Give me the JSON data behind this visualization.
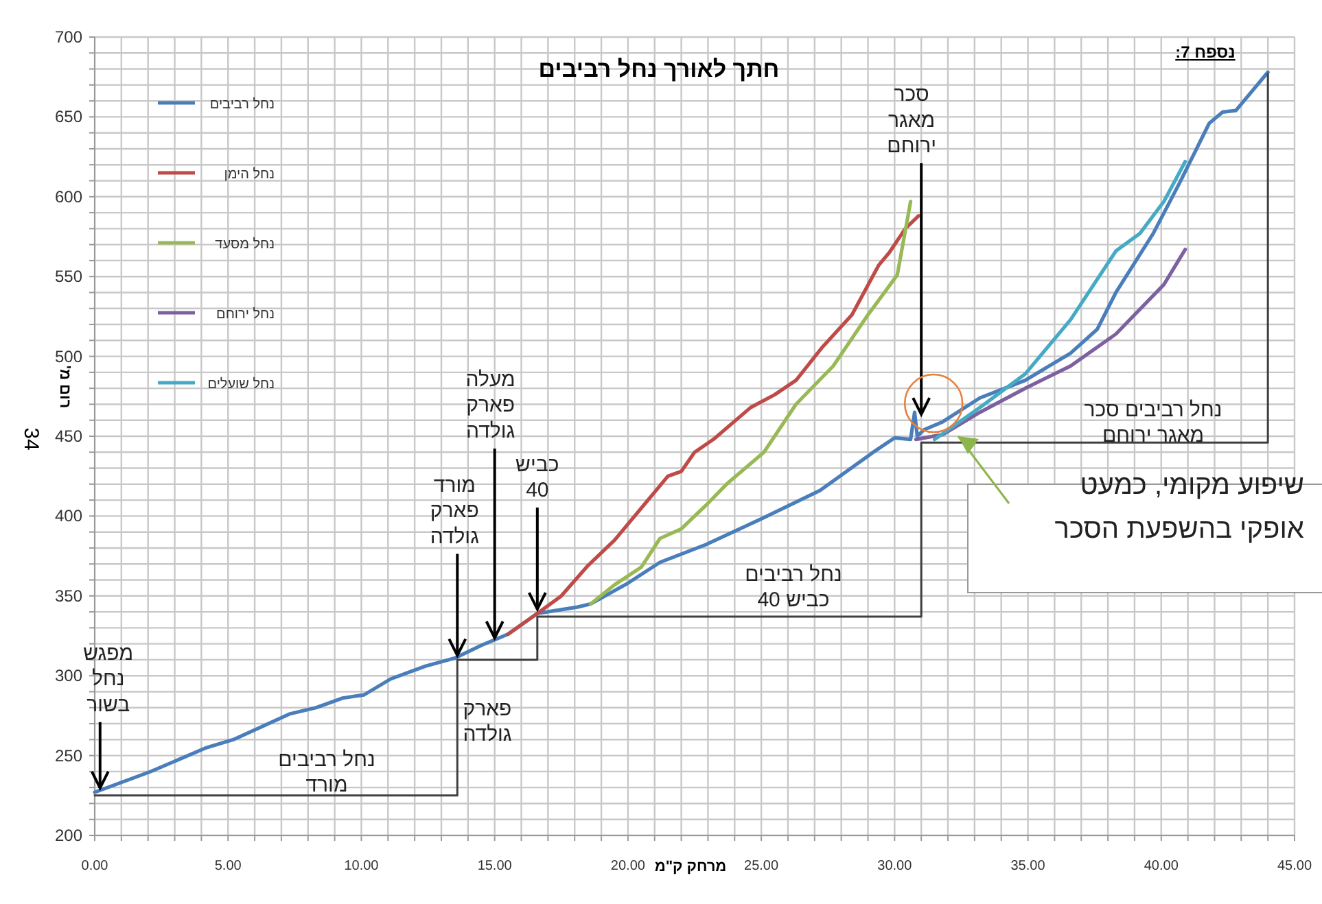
{
  "chart_data": {
    "type": "line",
    "title": "חתך לאורך נחל רביבים",
    "xlabel": "מרחק ק\"מ",
    "ylabel": "רום מ'",
    "xlim": [
      0,
      45
    ],
    "ylim": [
      200,
      700
    ],
    "xticks": [
      {
        "value": 0,
        "label": "0.00"
      },
      {
        "value": 1,
        "label": null
      },
      {
        "value": 2,
        "label": null
      },
      {
        "value": 3,
        "label": null
      },
      {
        "value": 4,
        "label": null
      },
      {
        "value": 5,
        "label": "5.00"
      },
      {
        "value": 6,
        "label": null
      },
      {
        "value": 7,
        "label": null
      },
      {
        "value": 8,
        "label": null
      },
      {
        "value": 9,
        "label": null
      },
      {
        "value": 10,
        "label": "10.00"
      },
      {
        "value": 11,
        "label": null
      },
      {
        "value": 12,
        "label": null
      },
      {
        "value": 13,
        "label": null
      },
      {
        "value": 14,
        "label": null
      },
      {
        "value": 15,
        "label": "15.00"
      },
      {
        "value": 16,
        "label": null
      },
      {
        "value": 17,
        "label": null
      },
      {
        "value": 18,
        "label": null
      },
      {
        "value": 19,
        "label": null
      },
      {
        "value": 20,
        "label": "20.00"
      },
      {
        "value": 21,
        "label": null
      },
      {
        "value": 22,
        "label": null
      },
      {
        "value": 23,
        "label": null
      },
      {
        "value": 24,
        "label": null
      },
      {
        "value": 25,
        "label": "25.00"
      },
      {
        "value": 26,
        "label": null
      },
      {
        "value": 27,
        "label": null
      },
      {
        "value": 28,
        "label": null
      },
      {
        "value": 29,
        "label": null
      },
      {
        "value": 30,
        "label": "30.00"
      },
      {
        "value": 31,
        "label": null
      },
      {
        "value": 32,
        "label": null
      },
      {
        "value": 33,
        "label": null
      },
      {
        "value": 34,
        "label": null
      },
      {
        "value": 35,
        "label": "35.00"
      },
      {
        "value": 36,
        "label": null
      },
      {
        "value": 37,
        "label": null
      },
      {
        "value": 38,
        "label": null
      },
      {
        "value": 39,
        "label": null
      },
      {
        "value": 40,
        "label": "40.00"
      },
      {
        "value": 41,
        "label": null
      },
      {
        "value": 42,
        "label": null
      },
      {
        "value": 43,
        "label": null
      },
      {
        "value": 44,
        "label": null
      },
      {
        "value": 45,
        "label": "45.00"
      }
    ],
    "yticks": [
      200,
      {
        "value": 210,
        "label": null
      },
      {
        "value": 220,
        "label": null
      },
      {
        "value": 230,
        "label": null
      },
      {
        "value": 240,
        "label": null
      },
      250,
      {
        "value": 260,
        "label": null
      },
      {
        "value": 270,
        "label": null
      },
      {
        "value": 280,
        "label": null
      },
      {
        "value": 290,
        "label": null
      },
      300,
      {
        "value": 310,
        "label": null
      },
      {
        "value": 320,
        "label": null
      },
      {
        "value": 330,
        "label": null
      },
      {
        "value": 340,
        "label": null
      },
      350,
      {
        "value": 360,
        "label": null
      },
      {
        "value": 370,
        "label": null
      },
      {
        "value": 380,
        "label": null
      },
      {
        "value": 390,
        "label": null
      },
      400,
      {
        "value": 410,
        "label": null
      },
      {
        "value": 420,
        "label": null
      },
      {
        "value": 430,
        "label": null
      },
      {
        "value": 440,
        "label": null
      },
      450,
      {
        "value": 460,
        "label": null
      },
      {
        "value": 470,
        "label": null
      },
      {
        "value": 480,
        "label": null
      },
      {
        "value": 490,
        "label": null
      },
      500,
      {
        "value": 510,
        "label": null
      },
      {
        "value": 520,
        "label": null
      },
      {
        "value": 530,
        "label": null
      },
      {
        "value": 540,
        "label": null
      },
      550,
      {
        "value": 560,
        "label": null
      },
      {
        "value": 570,
        "label": null
      },
      {
        "value": 580,
        "label": null
      },
      {
        "value": 590,
        "label": null
      },
      600,
      {
        "value": 610,
        "label": null
      },
      {
        "value": 620,
        "label": null
      },
      {
        "value": 630,
        "label": null
      },
      {
        "value": 640,
        "label": null
      },
      650,
      {
        "value": 660,
        "label": null
      },
      {
        "value": 670,
        "label": null
      },
      {
        "value": 680,
        "label": null
      },
      {
        "value": 690,
        "label": null
      },
      700
    ],
    "grid": true,
    "legend": "top left",
    "marker": "none",
    "line_style": "solid",
    "series": [
      {
        "name": "נחל רביבים",
        "color": "#4a7ebb",
        "x": [
          0,
          2.1,
          4.2,
          5.2,
          7.3,
          8.3,
          9.3,
          10.1,
          11.1,
          12.4,
          13.5,
          14.5,
          15.5,
          16.6,
          18.1,
          18.6,
          20,
          21.2,
          22.9,
          25.1,
          27.2,
          29.2,
          30,
          30.6,
          30.75,
          30.85,
          31.1,
          31.8,
          33.2,
          34.9,
          36.6,
          37.6,
          38.3,
          39.7,
          40.7,
          41.8,
          42.3,
          42.8,
          44
        ],
        "values": [
          227,
          240,
          255,
          260,
          276,
          280,
          286,
          288,
          298,
          306,
          311,
          319,
          326,
          339,
          343,
          345,
          358,
          371,
          382,
          399,
          416,
          440,
          449,
          448,
          465,
          450,
          454,
          459,
          474,
          485,
          502,
          517,
          540,
          577,
          609,
          646,
          653,
          654,
          678
        ]
      },
      {
        "name": "נחל הימן",
        "color": "#be4b48",
        "x": [
          15.5,
          16.6,
          17.5,
          18.5,
          19.5,
          20.5,
          21.5,
          22,
          22.5,
          23.2,
          24.6,
          25.5,
          26.3,
          27.3,
          28.4,
          29.4,
          29.8,
          30.4,
          30.9
        ],
        "values": [
          326,
          339,
          350,
          369,
          385,
          405,
          425,
          428,
          440,
          448,
          468,
          476,
          485,
          506,
          526,
          557,
          565,
          580,
          588
        ]
      },
      {
        "name": "נחל מסעד",
        "color": "#98b954",
        "x": [
          18.6,
          19.5,
          20.5,
          21.2,
          22,
          23,
          23.7,
          25.1,
          26.3,
          27.7,
          29,
          30.1,
          30.6
        ],
        "values": [
          345,
          357,
          368,
          386,
          392,
          408,
          420,
          440,
          470,
          494,
          526,
          551,
          597
        ]
      },
      {
        "name": "נחל ירוחם",
        "color": "#7d60a0",
        "x": [
          30.8,
          31.8,
          33.2,
          34.9,
          36.6,
          38.3,
          40.1,
          40.9
        ],
        "values": [
          448,
          451,
          465,
          480,
          494,
          514,
          545,
          567
        ]
      },
      {
        "name": "נחל שועלים",
        "color": "#46aac5",
        "x": [
          31.5,
          33.2,
          34.9,
          36.6,
          38.3,
          39.2,
          40.1,
          40.9
        ],
        "values": [
          448,
          468,
          489,
          523,
          566,
          577,
          597,
          622
        ]
      },
      {
        "color": "#404040",
        "x": [
          0,
          13.6,
          13.6,
          16.6,
          16.6,
          31,
          31,
          44,
          44
        ],
        "values": [
          225,
          225,
          310,
          310,
          337,
          337,
          446,
          446,
          677
        ]
      }
    ],
    "annotations": [
      "נספח 7:",
      "34",
      {
        "text": "מפגש\nנחל\nבשור",
        "x": 0.2,
        "y": 228
      },
      {
        "text": "מורד\nפארק\nגולדה",
        "x": 13.6,
        "y": 311
      },
      {
        "text": "מעלה\nפארק\nגולדה",
        "x": 15,
        "y": 322
      },
      {
        "text": "כביש\n40",
        "x": 16.6,
        "y": 340
      },
      {
        "text": "סכר\nמאגר\nירוחם",
        "x": 31,
        "y": 462
      },
      "שיפוע מקומי, כמעט\nאופקי בהשפעת הסכר",
      "נחל רביבים\nמורד",
      "פארק\nגולדה",
      "נחל רביבים\nכביש 40",
      "נחל רביבים סכר\nמאגר ירוחם"
    ]
  }
}
